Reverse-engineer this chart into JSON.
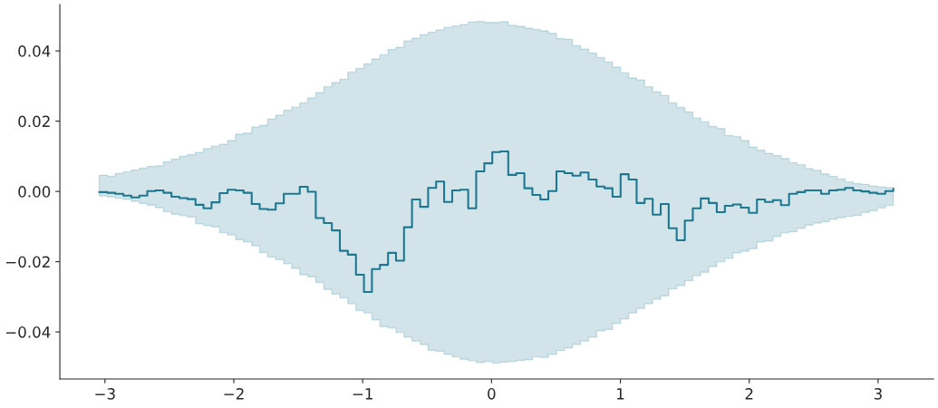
{
  "chart_data": {
    "type": "step",
    "x": [
      -3.044,
      -2.982,
      -2.92,
      -2.857,
      -2.795,
      -2.733,
      -2.671,
      -2.608,
      -2.546,
      -2.484,
      -2.422,
      -2.359,
      -2.297,
      -2.235,
      -2.173,
      -2.11,
      -2.048,
      -1.986,
      -1.924,
      -1.861,
      -1.799,
      -1.737,
      -1.675,
      -1.612,
      -1.55,
      -1.488,
      -1.426,
      -1.364,
      -1.301,
      -1.239,
      -1.177,
      -1.115,
      -1.052,
      -0.99,
      -0.928,
      -0.866,
      -0.803,
      -0.741,
      -0.679,
      -0.617,
      -0.554,
      -0.492,
      -0.43,
      -0.368,
      -0.305,
      -0.243,
      -0.181,
      -0.119,
      -0.056,
      0.006,
      0.068,
      0.13,
      0.192,
      0.255,
      0.317,
      0.379,
      0.441,
      0.504,
      0.566,
      0.628,
      0.69,
      0.753,
      0.815,
      0.877,
      0.939,
      1.002,
      1.064,
      1.126,
      1.188,
      1.251,
      1.313,
      1.375,
      1.437,
      1.5,
      1.562,
      1.624,
      1.686,
      1.748,
      1.811,
      1.873,
      1.935,
      1.997,
      2.06,
      2.122,
      2.184,
      2.246,
      2.309,
      2.371,
      2.433,
      2.495,
      2.558,
      2.62,
      2.682,
      2.744,
      2.807,
      2.869,
      2.931,
      2.993,
      3.056,
      3.118
    ],
    "series": [
      {
        "color": "#1c7891",
        "values": [
          -0.0002,
          -0.0004,
          -0.0007,
          -0.0012,
          -0.0017,
          -0.0012,
          0.0001,
          0.0003,
          -0.0004,
          -0.0015,
          -0.0019,
          -0.0022,
          -0.0038,
          -0.0048,
          -0.0031,
          -0.0005,
          0.0005,
          0.0003,
          -0.0004,
          -0.0036,
          -0.005,
          -0.0052,
          -0.0034,
          -0.0007,
          -0.0007,
          0.0013,
          -0.0001,
          -0.0076,
          -0.009,
          -0.0111,
          -0.0169,
          -0.018,
          -0.0237,
          -0.0286,
          -0.0221,
          -0.0209,
          -0.0175,
          -0.0197,
          -0.0102,
          -0.0023,
          -0.0044,
          0.001,
          0.0028,
          -0.003,
          0.0003,
          0.0005,
          -0.0048,
          0.0057,
          0.008,
          0.0112,
          0.0114,
          0.0047,
          0.0052,
          0.0009,
          -0.001,
          -0.0023,
          0.0001,
          0.0057,
          0.0052,
          0.0045,
          0.0054,
          0.0034,
          0.0014,
          0.0009,
          -0.0015,
          0.0049,
          0.0034,
          -0.0033,
          -0.0021,
          -0.0066,
          -0.0036,
          -0.0105,
          -0.0139,
          -0.0083,
          -0.0048,
          -0.002,
          -0.0033,
          -0.0059,
          -0.0041,
          -0.0037,
          -0.0046,
          -0.0061,
          -0.0023,
          -0.003,
          -0.0025,
          -0.0039,
          -0.0007,
          -0.0002,
          0.0003,
          0.0003,
          -0.0007,
          0.0003,
          0.0005,
          0.001,
          0.0003,
          0.0,
          -0.0004,
          -0.0007,
          0.0001,
          0.0008
        ],
        "upper": [
          0.0046,
          0.0043,
          0.0051,
          0.0056,
          0.0061,
          0.0066,
          0.0071,
          0.0073,
          0.0084,
          0.0092,
          0.01,
          0.0105,
          0.0111,
          0.0122,
          0.0129,
          0.0134,
          0.0145,
          0.0163,
          0.0166,
          0.0183,
          0.0188,
          0.0206,
          0.0217,
          0.0231,
          0.024,
          0.0252,
          0.0266,
          0.0281,
          0.0298,
          0.031,
          0.0319,
          0.034,
          0.035,
          0.0363,
          0.0377,
          0.0389,
          0.0404,
          0.041,
          0.0428,
          0.0436,
          0.0446,
          0.0453,
          0.046,
          0.0467,
          0.0471,
          0.0475,
          0.0482,
          0.0484,
          0.0481,
          0.0481,
          0.0483,
          0.0473,
          0.047,
          0.0465,
          0.0461,
          0.0457,
          0.045,
          0.0435,
          0.0433,
          0.0415,
          0.0405,
          0.0394,
          0.0381,
          0.0368,
          0.0354,
          0.0338,
          0.0323,
          0.0317,
          0.0298,
          0.0284,
          0.0273,
          0.0252,
          0.0239,
          0.0226,
          0.0209,
          0.0198,
          0.0185,
          0.0179,
          0.0159,
          0.0156,
          0.0145,
          0.0126,
          0.0117,
          0.0108,
          0.0102,
          0.0094,
          0.0082,
          0.0076,
          0.0065,
          0.006,
          0.005,
          0.0043,
          0.0035,
          0.0027,
          0.0022,
          0.002,
          0.0015,
          0.0013,
          0.0011,
          0.0011
        ],
        "lower": [
          -0.0013,
          -0.0016,
          -0.002,
          -0.0023,
          -0.0028,
          -0.0034,
          -0.0039,
          -0.0046,
          -0.0058,
          -0.0065,
          -0.0069,
          -0.0073,
          -0.0092,
          -0.0097,
          -0.0101,
          -0.0117,
          -0.0124,
          -0.0137,
          -0.0144,
          -0.0155,
          -0.0174,
          -0.0187,
          -0.0194,
          -0.0206,
          -0.0219,
          -0.0237,
          -0.0243,
          -0.0259,
          -0.0279,
          -0.0292,
          -0.0303,
          -0.032,
          -0.0339,
          -0.0346,
          -0.0366,
          -0.0385,
          -0.0389,
          -0.0402,
          -0.0415,
          -0.0426,
          -0.0436,
          -0.0452,
          -0.0455,
          -0.0464,
          -0.0471,
          -0.0478,
          -0.0482,
          -0.0487,
          -0.0484,
          -0.0489,
          -0.0486,
          -0.0484,
          -0.0481,
          -0.0479,
          -0.0471,
          -0.0473,
          -0.0464,
          -0.0453,
          -0.0446,
          -0.0436,
          -0.0426,
          -0.0415,
          -0.0397,
          -0.0393,
          -0.0376,
          -0.0363,
          -0.0346,
          -0.0333,
          -0.032,
          -0.0307,
          -0.0297,
          -0.0277,
          -0.0268,
          -0.0254,
          -0.024,
          -0.023,
          -0.0214,
          -0.02,
          -0.0191,
          -0.0175,
          -0.017,
          -0.0163,
          -0.0144,
          -0.0141,
          -0.0128,
          -0.0118,
          -0.0115,
          -0.0105,
          -0.0096,
          -0.009,
          -0.0086,
          -0.0079,
          -0.0075,
          -0.0071,
          -0.0068,
          -0.006,
          -0.0055,
          -0.0047,
          -0.004,
          -0.004
        ]
      }
    ],
    "xlim": [
      -3.35,
      3.43
    ],
    "ylim": [
      -0.0534,
      0.0532
    ],
    "xticks": [
      {
        "value": -3,
        "label": "−3"
      },
      {
        "value": -2,
        "label": "−2"
      },
      {
        "value": -1,
        "label": "−1"
      },
      {
        "value": 0,
        "label": "0"
      },
      {
        "value": 1,
        "label": "1"
      },
      {
        "value": 2,
        "label": "2"
      },
      {
        "value": 3,
        "label": "3"
      }
    ],
    "yticks": [
      {
        "value": -0.04,
        "label": "−0.04"
      },
      {
        "value": -0.02,
        "label": "−0.02"
      },
      {
        "value": 0,
        "label": "0.00"
      },
      {
        "value": 0.02,
        "label": "0.02"
      },
      {
        "value": 0.04,
        "label": "0.04"
      }
    ]
  }
}
